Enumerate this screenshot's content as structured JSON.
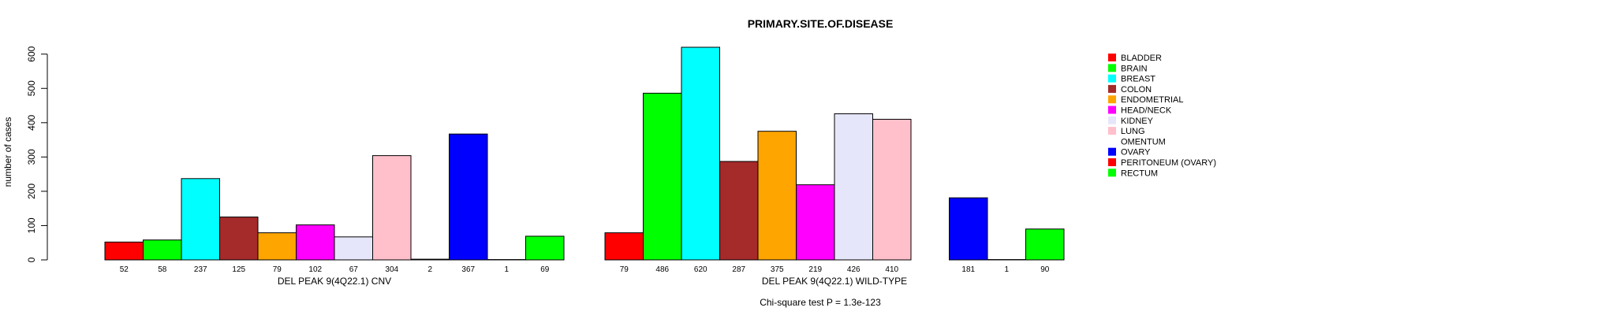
{
  "chart_data": {
    "type": "bar",
    "title": "PRIMARY.SITE.OF.DISEASE",
    "ylabel": "number of cases",
    "ylim": [
      0,
      620
    ],
    "yticks": [
      0,
      100,
      200,
      300,
      400,
      500,
      600
    ],
    "footnote": "Chi-square test P = 1.3e-123",
    "categories": [
      "BLADDER",
      "BRAIN",
      "BREAST",
      "COLON",
      "ENDOMETRIAL",
      "HEAD/NECK",
      "KIDNEY",
      "LUNG",
      "OMENTUM",
      "OVARY",
      "PERITONEUM (OVARY)",
      "RECTUM"
    ],
    "colors": [
      "#ff0000",
      "#00ff00",
      "#00ffff",
      "#a52a2a",
      "#ffa500",
      "#ff00ff",
      "#e6e6fa",
      "#ffc0cb",
      "#ffffff",
      "#0000ff",
      "#ff0000",
      "#00ff00"
    ],
    "groups": [
      {
        "name": "DEL PEAK 9(4Q22.1) CNV",
        "values": [
          52,
          58,
          237,
          125,
          79,
          102,
          67,
          304,
          2,
          367,
          1,
          69
        ]
      },
      {
        "name": "DEL PEAK 9(4Q22.1) WILD-TYPE",
        "values": [
          79,
          486,
          620,
          287,
          375,
          219,
          426,
          410,
          null,
          181,
          1,
          90
        ]
      }
    ],
    "legend": {
      "position": "right",
      "labels": [
        "BLADDER",
        "BRAIN",
        "BREAST",
        "COLON",
        "ENDOMETRIAL",
        "HEAD/NECK",
        "KIDNEY",
        "LUNG",
        "OMENTUM",
        "OVARY",
        "PERITONEUM (OVARY)",
        "RECTUM"
      ]
    }
  }
}
